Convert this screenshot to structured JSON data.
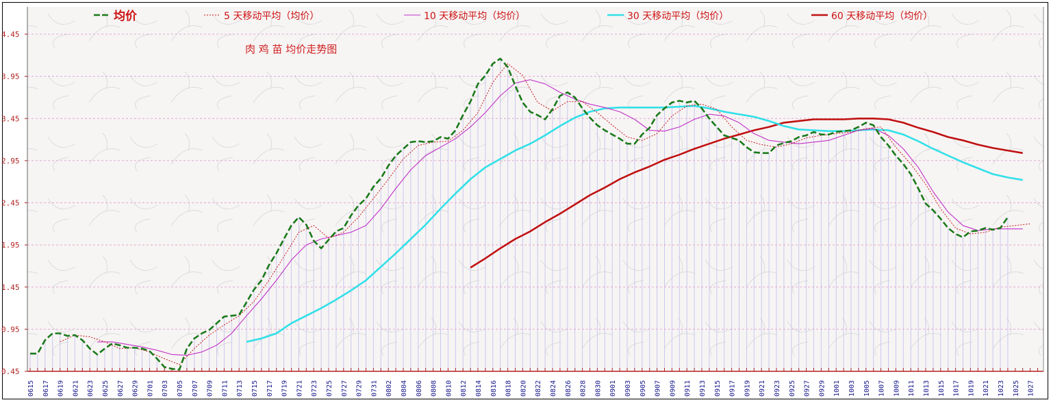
{
  "chart_data": {
    "type": "line",
    "title": "肉 鸡 苗 均价走势图",
    "xlabel": "",
    "ylabel": "",
    "ylim": [
      0.45,
      4.45
    ],
    "yticks": [
      "0.45",
      "0.95",
      "1.45",
      "1.95",
      "2.45",
      "2.95",
      "3.45",
      "3.95",
      "4.45"
    ],
    "grid": true,
    "legend_position": "top",
    "x_tick_labels": [
      "0615",
      "0617",
      "0619",
      "0621",
      "0623",
      "0625",
      "0627",
      "0629",
      "0701",
      "0703",
      "0705",
      "0707",
      "0709",
      "0711",
      "0713",
      "0715",
      "0717",
      "0719",
      "0721",
      "0723",
      "0725",
      "0727",
      "0729",
      "0731",
      "0802",
      "0804",
      "0806",
      "0808",
      "0810",
      "0812",
      "0814",
      "0816",
      "0818",
      "0820",
      "0822",
      "0824",
      "0826",
      "0828",
      "0830",
      "0901",
      "0903",
      "0905",
      "0907",
      "0909",
      "0911",
      "0913",
      "0915",
      "0917",
      "0919",
      "0921",
      "0923",
      "0925",
      "0927",
      "0929",
      "1001",
      "1003",
      "1005",
      "1007",
      "1009",
      "1011",
      "1013",
      "1015",
      "1017",
      "1019",
      "1021",
      "1023",
      "1025",
      "1027"
    ],
    "series": [
      {
        "name": "均价",
        "color": "#1a7a1a",
        "style": "dashed-bold",
        "start": 0,
        "step": 1,
        "values": [
          0.66,
          0.66,
          0.82,
          0.9,
          0.9,
          0.87,
          0.88,
          0.82,
          0.72,
          0.65,
          0.72,
          0.78,
          0.76,
          0.73,
          0.73,
          0.72,
          0.69,
          0.6,
          0.5,
          0.48,
          0.47,
          0.72,
          0.84,
          0.9,
          0.94,
          1.02,
          1.1,
          1.11,
          1.12,
          1.27,
          1.42,
          1.53,
          1.71,
          1.85,
          2.02,
          2.18,
          2.28,
          2.19,
          2.0,
          1.91,
          2.01,
          2.11,
          2.15,
          2.3,
          2.42,
          2.5,
          2.64,
          2.74,
          2.89,
          3.01,
          3.09,
          3.17,
          3.18,
          3.17,
          3.18,
          3.23,
          3.21,
          3.31,
          3.49,
          3.65,
          3.86,
          3.96,
          4.1,
          4.16,
          4.06,
          3.84,
          3.64,
          3.53,
          3.49,
          3.44,
          3.56,
          3.72,
          3.76,
          3.7,
          3.57,
          3.46,
          3.37,
          3.31,
          3.26,
          3.21,
          3.15,
          3.15,
          3.26,
          3.34,
          3.49,
          3.57,
          3.64,
          3.66,
          3.64,
          3.66,
          3.57,
          3.45,
          3.35,
          3.25,
          3.22,
          3.19,
          3.11,
          3.05,
          3.04,
          3.04,
          3.13,
          3.16,
          3.18,
          3.23,
          3.25,
          3.29,
          3.26,
          3.26,
          3.29,
          3.3,
          3.31,
          3.35,
          3.4,
          3.37,
          3.23,
          3.13,
          3.01,
          2.91,
          2.79,
          2.62,
          2.44,
          2.36,
          2.26,
          2.15,
          2.08,
          2.04,
          2.11,
          2.12,
          2.15,
          2.13,
          2.15,
          2.28
        ]
      },
      {
        "name": "5 天移动平均（均价）",
        "color": "#c81818",
        "style": "dotted",
        "start": 4,
        "step": 2,
        "values": [
          0.8,
          0.88,
          0.86,
          0.8,
          0.72,
          0.73,
          0.68,
          0.6,
          0.53,
          0.72,
          0.88,
          1.0,
          1.11,
          1.28,
          1.53,
          1.81,
          2.1,
          2.18,
          2.03,
          2.1,
          2.28,
          2.5,
          2.73,
          2.97,
          3.13,
          3.17,
          3.18,
          3.31,
          3.52,
          3.88,
          4.1,
          3.96,
          3.64,
          3.54,
          3.65,
          3.65,
          3.52,
          3.37,
          3.23,
          3.19,
          3.27,
          3.48,
          3.6,
          3.62,
          3.56,
          3.35,
          3.19,
          3.14,
          3.11,
          3.15,
          3.22,
          3.25,
          3.27,
          3.29,
          3.33,
          3.35,
          3.11,
          2.91,
          2.67,
          2.38,
          2.15,
          2.08,
          2.1,
          2.16,
          2.18,
          2.2
        ]
      },
      {
        "name": "10 天移动平均（均价）",
        "color": "#c030c8",
        "style": "solid-thin",
        "start": 9,
        "step": 2,
        "values": [
          0.8,
          0.8,
          0.77,
          0.74,
          0.7,
          0.65,
          0.64,
          0.68,
          0.76,
          0.9,
          1.11,
          1.31,
          1.53,
          1.77,
          1.95,
          2.02,
          2.06,
          2.1,
          2.18,
          2.38,
          2.62,
          2.84,
          3.01,
          3.11,
          3.21,
          3.35,
          3.52,
          3.72,
          3.87,
          3.91,
          3.86,
          3.76,
          3.68,
          3.62,
          3.58,
          3.53,
          3.44,
          3.31,
          3.3,
          3.35,
          3.44,
          3.5,
          3.48,
          3.4,
          3.27,
          3.19,
          3.17,
          3.15,
          3.17,
          3.19,
          3.25,
          3.31,
          3.33,
          3.25,
          3.09,
          2.87,
          2.58,
          2.34,
          2.18,
          2.12,
          2.14,
          2.14,
          2.14
        ]
      },
      {
        "name": "30 天移动平均（均价）",
        "color": "#30e0e8",
        "style": "solid-thick",
        "start": 29,
        "step": 2,
        "values": [
          0.8,
          0.84,
          0.9,
          1.02,
          1.11,
          1.2,
          1.3,
          1.41,
          1.53,
          1.69,
          1.85,
          2.02,
          2.19,
          2.38,
          2.56,
          2.73,
          2.87,
          2.97,
          3.07,
          3.15,
          3.25,
          3.36,
          3.46,
          3.53,
          3.57,
          3.58,
          3.58,
          3.58,
          3.58,
          3.59,
          3.6,
          3.57,
          3.53,
          3.5,
          3.47,
          3.42,
          3.36,
          3.32,
          3.31,
          3.3,
          3.3,
          3.31,
          3.32,
          3.31,
          3.26,
          3.18,
          3.09,
          3.01,
          2.93,
          2.86,
          2.79,
          2.75,
          2.72
        ]
      },
      {
        "name": "60 天移动平均（均价）",
        "color": "#c01010",
        "style": "solid-thick",
        "start": 59,
        "step": 2,
        "values": [
          1.68,
          1.79,
          1.91,
          2.02,
          2.11,
          2.22,
          2.32,
          2.43,
          2.54,
          2.63,
          2.73,
          2.81,
          2.88,
          2.96,
          3.02,
          3.09,
          3.15,
          3.21,
          3.26,
          3.31,
          3.35,
          3.4,
          3.42,
          3.44,
          3.44,
          3.44,
          3.45,
          3.45,
          3.44,
          3.4,
          3.34,
          3.29,
          3.23,
          3.19,
          3.14,
          3.1,
          3.07,
          3.04
        ]
      }
    ]
  }
}
